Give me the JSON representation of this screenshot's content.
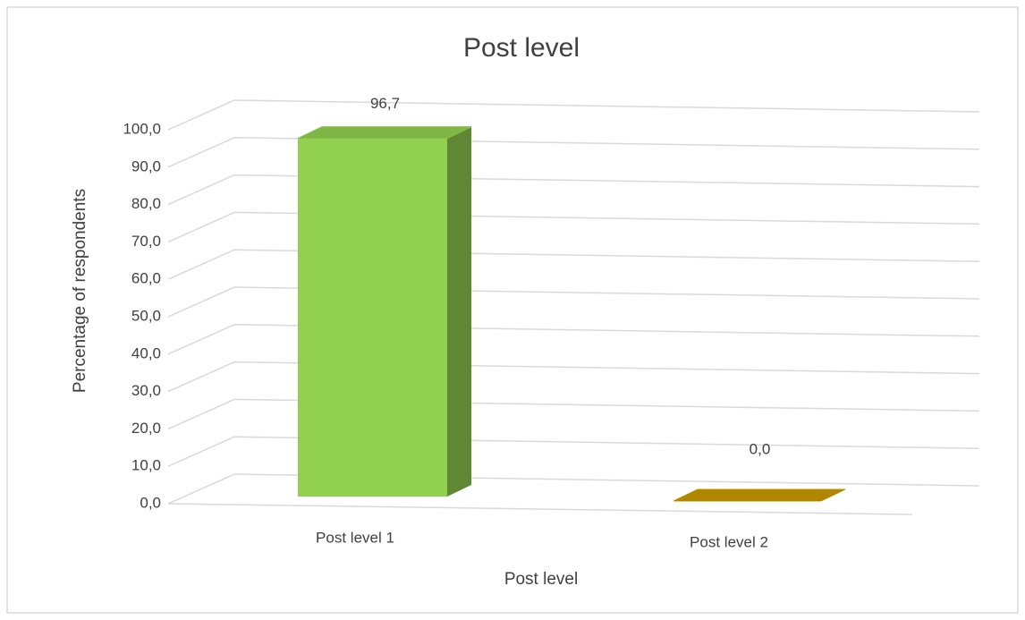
{
  "chart_data": {
    "type": "bar3d",
    "title": "Post level",
    "categories": [
      "Post level 1",
      "Post level 2"
    ],
    "values": [
      96.7,
      0.0
    ],
    "value_labels": [
      "96,7",
      "0,0"
    ],
    "colors": [
      "#92d050",
      "#c99a00"
    ],
    "xlabel": "Post level",
    "ylabel": "Percentage of respondents",
    "ylim": [
      0,
      100
    ],
    "yticks": [
      {
        "value": 0,
        "label": "0,0"
      },
      {
        "value": 10,
        "label": "10,0"
      },
      {
        "value": 20,
        "label": "20,0"
      },
      {
        "value": 30,
        "label": "30,0"
      },
      {
        "value": 40,
        "label": "40,0"
      },
      {
        "value": 50,
        "label": "50,0"
      },
      {
        "value": 60,
        "label": "60,0"
      },
      {
        "value": 70,
        "label": "70,0"
      },
      {
        "value": 80,
        "label": "80,0"
      },
      {
        "value": 90,
        "label": "90,0"
      },
      {
        "value": 100,
        "label": "100,0"
      }
    ],
    "grid": true
  }
}
